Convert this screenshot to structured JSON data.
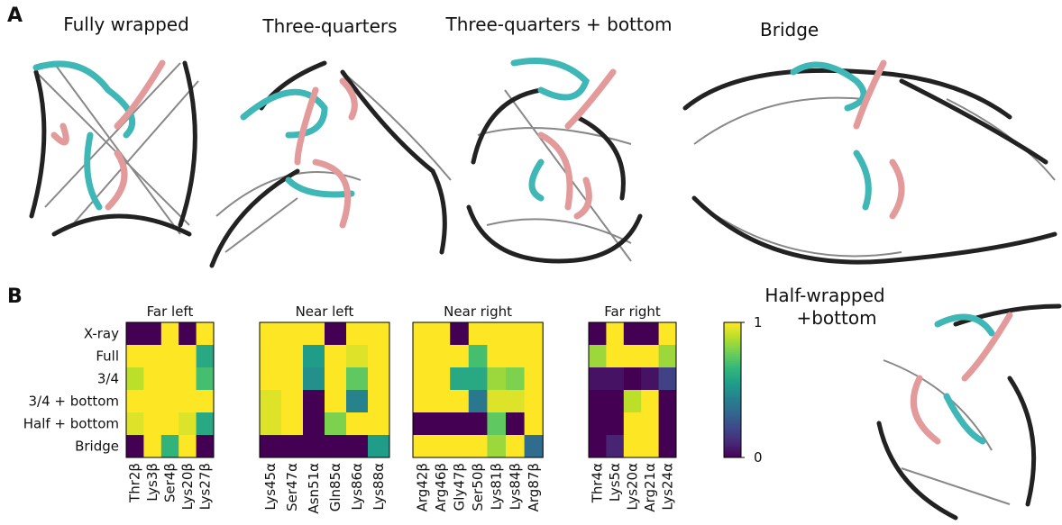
{
  "panel_a": {
    "label": "A",
    "captions": [
      "Fully wrapped",
      "Three-quarters",
      "Three-quarters + bottom",
      "Bridge"
    ]
  },
  "panel_b": {
    "label": "B",
    "inset_caption": [
      "Half-wrapped",
      "+bottom"
    ]
  },
  "chart_data": {
    "type": "heatmap",
    "colormap": "viridis",
    "rows": [
      "X-ray",
      "Full",
      "3/4",
      "3/4 + bottom",
      "Half + bottom",
      "Bridge"
    ],
    "zlim": [
      0,
      1
    ],
    "zticks": [
      1,
      0
    ],
    "panels": [
      {
        "title": "Far left",
        "columns": [
          "Thr2β",
          "Lys3β",
          "Ser4β",
          "Lys20β",
          "Lys27β"
        ],
        "values": [
          [
            0,
            0,
            1,
            0,
            1
          ],
          [
            1,
            1,
            1,
            1,
            0.6
          ],
          [
            0.9,
            1,
            1,
            1,
            0.7
          ],
          [
            1,
            1,
            1,
            1,
            1
          ],
          [
            0.95,
            1,
            1,
            0.95,
            0.6
          ],
          [
            0,
            1,
            0.65,
            1,
            0
          ]
        ]
      },
      {
        "title": "Near left",
        "columns": [
          "Lys45α",
          "Ser47α",
          "Asn51α",
          "Gln85α",
          "Lys86α",
          "Lys88α"
        ],
        "values": [
          [
            1,
            1,
            1,
            0,
            1,
            1
          ],
          [
            1,
            1,
            0.55,
            1,
            0.95,
            1
          ],
          [
            1,
            1,
            0.5,
            1,
            0.75,
            1
          ],
          [
            0.95,
            1,
            0,
            1,
            0.45,
            1
          ],
          [
            0.95,
            1,
            0,
            0.8,
            1,
            1
          ],
          [
            0,
            0,
            0,
            0,
            0,
            0.55
          ]
        ]
      },
      {
        "title": "Near right",
        "columns": [
          "Arg42β",
          "Arg46β",
          "Gly47β",
          "Ser50β",
          "Lys81β",
          "Lys84β",
          "Arg87β"
        ],
        "values": [
          [
            1,
            1,
            0,
            1,
            1,
            1,
            1
          ],
          [
            1,
            1,
            1,
            0.7,
            1,
            1,
            1
          ],
          [
            1,
            1,
            0.6,
            0.6,
            0.85,
            0.8,
            1
          ],
          [
            1,
            1,
            1,
            0.4,
            0.95,
            0.95,
            1
          ],
          [
            0,
            0,
            0,
            0,
            0.75,
            0,
            1
          ],
          [
            1,
            1,
            1,
            1,
            0.85,
            1,
            0.35
          ]
        ]
      },
      {
        "title": "Far right",
        "columns": [
          "Thr4α",
          "Lys5α",
          "Lys20α",
          "Arg21α",
          "Lys24α"
        ],
        "values": [
          [
            0,
            1,
            0,
            0,
            1
          ],
          [
            0.85,
            1,
            1,
            1,
            0.85
          ],
          [
            0.05,
            0.05,
            0,
            0.05,
            0.2
          ],
          [
            0,
            0,
            0.9,
            1,
            0
          ],
          [
            0,
            0,
            1,
            1,
            0
          ],
          [
            0,
            0.1,
            1,
            1,
            0
          ]
        ]
      }
    ]
  }
}
